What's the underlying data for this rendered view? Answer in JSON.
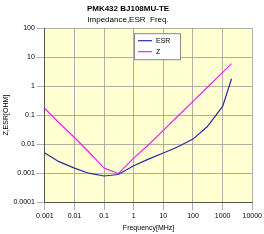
{
  "chart_data": {
    "type": "line",
    "title": "PMK432 BJ108MU-TE",
    "subtitle": "Impedance,ESR  Freq.",
    "xlabel": "Frequency[MHz]",
    "ylabel": "Z,ESR[OHM]",
    "x": [
      0.001,
      0.003,
      0.01,
      0.03,
      0.1,
      0.3,
      1,
      3,
      10,
      30,
      100,
      300,
      1000,
      2000
    ],
    "series": [
      {
        "name": "ESR",
        "color": "#2a2aa8",
        "marker": "none",
        "line_style": "solid",
        "values": [
          0.005,
          0.0025,
          0.0015,
          0.001,
          0.0008,
          0.0009,
          0.0018,
          0.003,
          0.005,
          0.008,
          0.015,
          0.04,
          0.2,
          1.8
        ]
      },
      {
        "name": "Z",
        "color": "#ee22ee",
        "marker": "none",
        "line_style": "solid",
        "values": [
          0.17,
          0.055,
          0.017,
          0.0055,
          0.0015,
          0.00097,
          0.0033,
          0.009,
          0.03,
          0.09,
          0.3,
          0.9,
          3,
          6
        ]
      }
    ],
    "log": true,
    "xlim": [
      0.001,
      10000
    ],
    "xticks": [
      0.001,
      0.01,
      0.1,
      1,
      10,
      100,
      1000,
      10000
    ],
    "ylim": [
      0.0001,
      100
    ],
    "yticks": [
      0.0001,
      0.001,
      0.01,
      0.1,
      1,
      10,
      100
    ],
    "grid": true,
    "legend": "top"
  }
}
